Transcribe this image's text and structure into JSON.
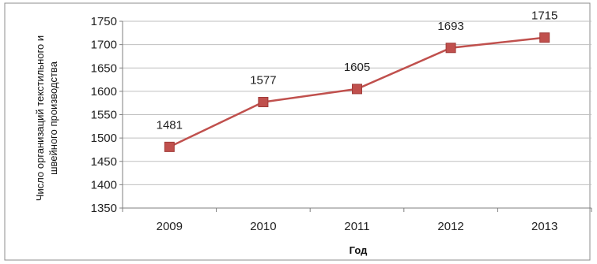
{
  "chart_data": {
    "type": "line",
    "title": "",
    "xlabel": "Год",
    "ylabel_lines": [
      "Число организаций текстильного и",
      "швейного производства"
    ],
    "ylim": [
      1350,
      1750
    ],
    "ytick_step": 50,
    "yticks": [
      "1350",
      "1400",
      "1450",
      "1500",
      "1550",
      "1600",
      "1650",
      "1700",
      "1750"
    ],
    "categories": [
      "2009",
      "2010",
      "2011",
      "2012",
      "2013"
    ],
    "series": [
      {
        "values": [
          1481,
          1577,
          1605,
          1693,
          1715
        ],
        "color": "#c0504d",
        "marker_color": "#c0504d"
      }
    ],
    "data_labels": [
      "1481",
      "1577",
      "1605",
      "1693",
      "1715"
    ],
    "grid": true,
    "legend": "none"
  }
}
